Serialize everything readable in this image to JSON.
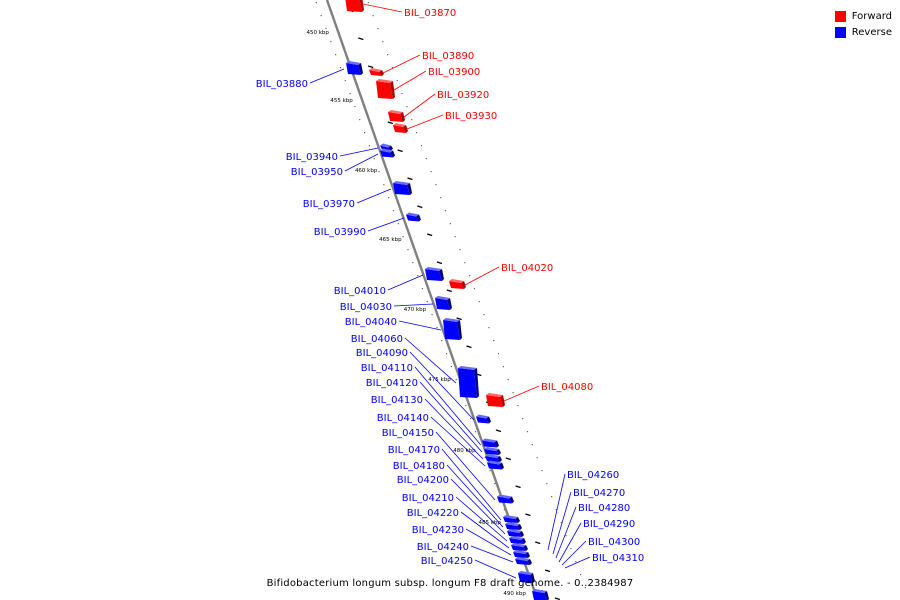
{
  "caption": "Bifidobacterium longum subsp. longum F8 draft genome. - 0..2384987",
  "legend": [
    {
      "label": "Forward",
      "color": "#ff0000"
    },
    {
      "label": "Reverse",
      "color": "#0000ff"
    }
  ],
  "colors": {
    "forward": "#ff0000",
    "reverse": "#0000ff",
    "backbone": "#808080"
  },
  "scale_labels": [
    "450 kbp",
    "455 kbp",
    "460 kbp",
    "465 kbp",
    "470 kbp",
    "475 kbp",
    "480 kbp",
    "485 kbp",
    "490 kbp"
  ],
  "genes": [
    {
      "id": "BIL_03870",
      "strand": "forward"
    },
    {
      "id": "BIL_03880",
      "strand": "reverse"
    },
    {
      "id": "BIL_03890",
      "strand": "forward"
    },
    {
      "id": "BIL_03900",
      "strand": "forward"
    },
    {
      "id": "BIL_03920",
      "strand": "forward"
    },
    {
      "id": "BIL_03930",
      "strand": "forward"
    },
    {
      "id": "BIL_03940",
      "strand": "reverse"
    },
    {
      "id": "BIL_03950",
      "strand": "reverse"
    },
    {
      "id": "BIL_03970",
      "strand": "reverse"
    },
    {
      "id": "BIL_03990",
      "strand": "reverse"
    },
    {
      "id": "BIL_04010",
      "strand": "reverse"
    },
    {
      "id": "BIL_04020",
      "strand": "forward"
    },
    {
      "id": "BIL_04030",
      "strand": "reverse"
    },
    {
      "id": "BIL_04040",
      "strand": "reverse"
    },
    {
      "id": "BIL_04060",
      "strand": "reverse"
    },
    {
      "id": "BIL_04080",
      "strand": "forward"
    },
    {
      "id": "BIL_04090",
      "strand": "reverse"
    },
    {
      "id": "BIL_04110",
      "strand": "reverse"
    },
    {
      "id": "BIL_04120",
      "strand": "reverse"
    },
    {
      "id": "BIL_04130",
      "strand": "reverse"
    },
    {
      "id": "BIL_04140",
      "strand": "reverse"
    },
    {
      "id": "BIL_04150",
      "strand": "reverse"
    },
    {
      "id": "BIL_04170",
      "strand": "reverse"
    },
    {
      "id": "BIL_04180",
      "strand": "reverse"
    },
    {
      "id": "BIL_04200",
      "strand": "reverse"
    },
    {
      "id": "BIL_04210",
      "strand": "reverse"
    },
    {
      "id": "BIL_04220",
      "strand": "reverse"
    },
    {
      "id": "BIL_04230",
      "strand": "reverse"
    },
    {
      "id": "BIL_04240",
      "strand": "reverse"
    },
    {
      "id": "BIL_04250",
      "strand": "reverse"
    },
    {
      "id": "BIL_04260",
      "strand": "reverse"
    },
    {
      "id": "BIL_04270",
      "strand": "reverse"
    },
    {
      "id": "BIL_04280",
      "strand": "reverse"
    },
    {
      "id": "BIL_04290",
      "strand": "reverse"
    },
    {
      "id": "BIL_04300",
      "strand": "reverse"
    },
    {
      "id": "BIL_04310",
      "strand": "reverse"
    }
  ]
}
